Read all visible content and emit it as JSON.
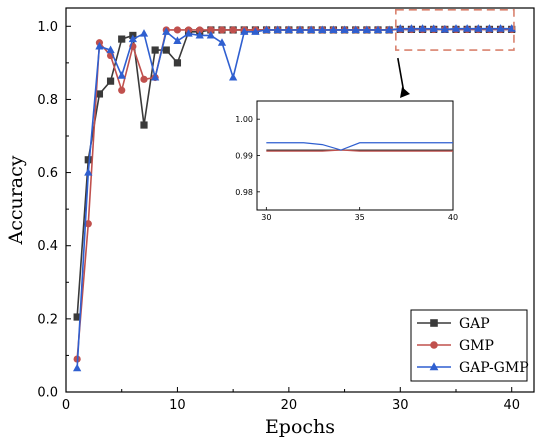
{
  "chart_data": {
    "type": "line",
    "title": "",
    "xlabel": "Epochs",
    "ylabel": "Accuracy",
    "xlim": [
      0,
      42
    ],
    "ylim": [
      0.0,
      1.05
    ],
    "xticks": [
      0,
      10,
      20,
      30,
      40
    ],
    "yticks": [
      0.0,
      0.2,
      0.4,
      0.6,
      0.8,
      1.0
    ],
    "xtick_labels": [
      "0",
      "10",
      "20",
      "30",
      "40"
    ],
    "ytick_labels": [
      "0.0",
      "0.2",
      "0.4",
      "0.6",
      "0.8",
      "1.0"
    ],
    "grid": false,
    "legend_position": "bottom-right",
    "series": [
      {
        "name": "GAP",
        "color": "#3a3a3a",
        "marker": "square",
        "x": [
          1,
          2,
          3,
          4,
          5,
          6,
          7,
          8,
          9,
          10,
          11,
          12,
          13,
          14,
          15,
          16,
          17,
          18,
          19,
          20,
          21,
          22,
          23,
          24,
          25,
          26,
          27,
          28,
          29,
          30,
          31,
          32,
          33,
          34,
          35,
          36,
          37,
          38,
          39,
          40
        ],
        "values": [
          0.205,
          0.635,
          0.815,
          0.85,
          0.965,
          0.975,
          0.73,
          0.935,
          0.935,
          0.9,
          0.985,
          0.985,
          0.99,
          0.99,
          0.99,
          0.99,
          0.99,
          0.99,
          0.99,
          0.99,
          0.99,
          0.99,
          0.99,
          0.99,
          0.99,
          0.99,
          0.99,
          0.99,
          0.99,
          0.9915,
          0.9915,
          0.9915,
          0.9915,
          0.9915,
          0.9915,
          0.9915,
          0.9915,
          0.9915,
          0.9915,
          0.9915
        ]
      },
      {
        "name": "GMP",
        "color": "#c0504d",
        "marker": "circle",
        "x": [
          1,
          2,
          3,
          4,
          5,
          6,
          7,
          8,
          9,
          10,
          11,
          12,
          13,
          14,
          15,
          16,
          17,
          18,
          19,
          20,
          21,
          22,
          23,
          24,
          25,
          26,
          27,
          28,
          29,
          30,
          31,
          32,
          33,
          34,
          35,
          36,
          37,
          38,
          39,
          40
        ],
        "values": [
          0.09,
          0.46,
          0.955,
          0.92,
          0.825,
          0.945,
          0.855,
          0.86,
          0.99,
          0.99,
          0.99,
          0.99,
          0.99,
          0.99,
          0.99,
          0.99,
          0.99,
          0.99,
          0.99,
          0.99,
          0.99,
          0.99,
          0.99,
          0.99,
          0.99,
          0.99,
          0.99,
          0.99,
          0.99,
          0.9912,
          0.9912,
          0.9912,
          0.9912,
          0.9915,
          0.9912,
          0.9912,
          0.9912,
          0.9912,
          0.9912,
          0.9912
        ]
      },
      {
        "name": "GAP-GMP",
        "color": "#2f5fd0",
        "marker": "triangle",
        "x": [
          1,
          2,
          3,
          4,
          5,
          6,
          7,
          8,
          9,
          10,
          11,
          12,
          13,
          14,
          15,
          16,
          17,
          18,
          19,
          20,
          21,
          22,
          23,
          24,
          25,
          26,
          27,
          28,
          29,
          30,
          31,
          32,
          33,
          34,
          35,
          36,
          37,
          38,
          39,
          40
        ],
        "values": [
          0.065,
          0.6,
          0.945,
          0.935,
          0.865,
          0.965,
          0.98,
          0.86,
          0.985,
          0.96,
          0.98,
          0.975,
          0.975,
          0.955,
          0.86,
          0.985,
          0.985,
          0.99,
          0.99,
          0.99,
          0.99,
          0.99,
          0.99,
          0.99,
          0.99,
          0.99,
          0.99,
          0.99,
          0.99,
          0.9935,
          0.9935,
          0.9935,
          0.993,
          0.9915,
          0.9935,
          0.9935,
          0.9935,
          0.9935,
          0.9935,
          0.9935
        ]
      }
    ],
    "inset": {
      "xlim": [
        29.5,
        40
      ],
      "ylim": [
        0.975,
        1.005
      ],
      "xticks": [
        30,
        35,
        40
      ],
      "yticks": [
        0.98,
        0.99,
        1.0
      ],
      "xtick_labels": [
        "30",
        "35",
        "40"
      ],
      "ytick_labels": [
        "0.98",
        "0.99",
        "1.00"
      ]
    },
    "zoom_box": {
      "x": [
        29.6,
        40.2
      ],
      "y": [
        0.935,
        1.045
      ]
    }
  }
}
